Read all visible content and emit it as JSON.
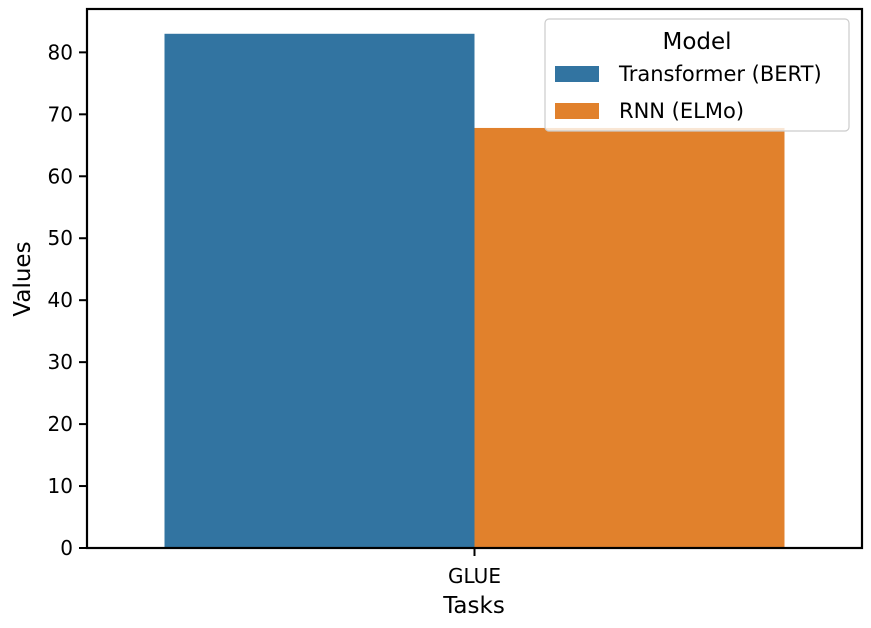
{
  "chart_data": {
    "type": "bar",
    "categories": [
      "GLUE"
    ],
    "series": [
      {
        "name": "Transformer (BERT)",
        "values": [
          83
        ],
        "color": "#3274a1"
      },
      {
        "name": "RNN (ELMo)",
        "values": [
          67.8
        ],
        "color": "#e1812c"
      }
    ],
    "xlabel": "Tasks",
    "ylabel": "Values",
    "ylim": [
      0,
      87
    ],
    "yticks": [
      0,
      10,
      20,
      30,
      40,
      50,
      60,
      70,
      80
    ],
    "legend": {
      "title": "Model",
      "placement": "top-right"
    },
    "grid": false
  }
}
